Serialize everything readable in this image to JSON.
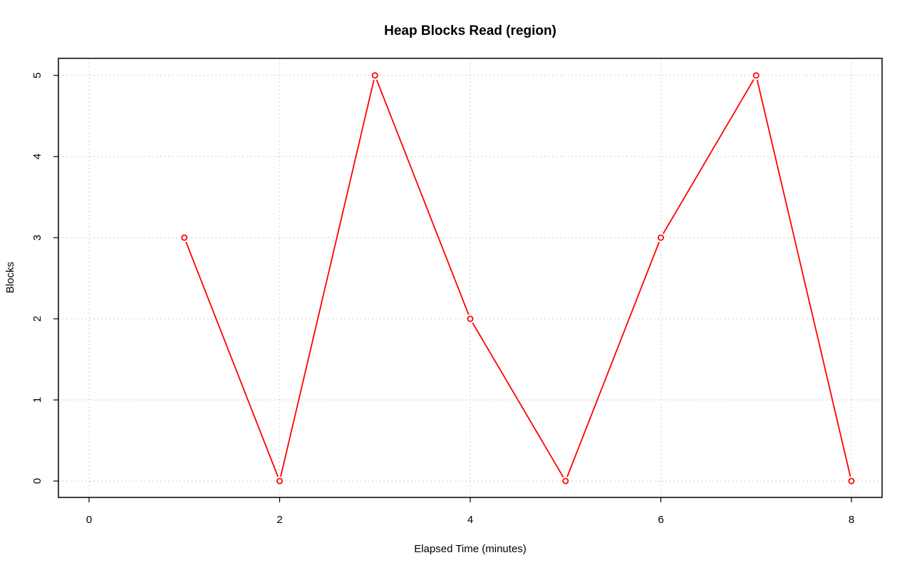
{
  "chart_data": {
    "type": "line",
    "title": "Heap Blocks Read (region)",
    "xlabel": "Elapsed Time (minutes)",
    "ylabel": "Blocks",
    "xlim": [
      0,
      8
    ],
    "ylim": [
      0,
      5
    ],
    "x_ticks": [
      0,
      2,
      4,
      6,
      8
    ],
    "y_ticks": [
      0,
      1,
      2,
      3,
      4,
      5
    ],
    "grid": true,
    "series": [
      {
        "color": "#ff0000",
        "marker": "open-circle",
        "x": [
          1,
          2,
          3,
          4,
          5,
          6,
          7,
          8
        ],
        "y": [
          3,
          0,
          5,
          2,
          0,
          3,
          5,
          0
        ]
      }
    ]
  }
}
